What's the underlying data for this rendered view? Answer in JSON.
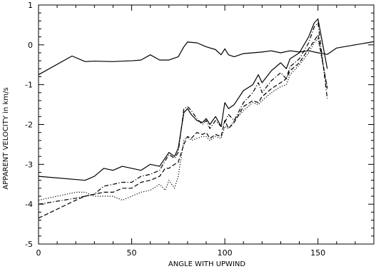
{
  "chart_data": {
    "type": "line",
    "title": "",
    "xlabel": "ANGLE WITH UPWIND",
    "ylabel": "APPARENT VELOCITY in km/s",
    "xlim": [
      0,
      180
    ],
    "ylim": [
      -5,
      1
    ],
    "xticks": [
      0,
      50,
      100,
      150
    ],
    "yticks": [
      -5,
      -4,
      -3,
      -2,
      -1,
      0,
      1
    ],
    "grid": false,
    "legend": "none",
    "series": [
      {
        "style": "solid",
        "x": [
          0,
          18,
          25,
          30,
          40,
          45,
          50,
          55,
          60,
          65,
          70,
          75,
          78,
          80,
          85,
          90,
          95,
          98,
          100,
          102,
          105,
          110,
          115,
          120,
          125,
          130,
          135,
          140,
          145,
          150,
          155,
          160,
          170,
          180
        ],
        "y": [
          -0.75,
          -0.28,
          -0.42,
          -0.41,
          -0.42,
          -0.41,
          -0.4,
          -0.38,
          -0.25,
          -0.38,
          -0.38,
          -0.3,
          -0.05,
          0.07,
          0.05,
          -0.05,
          -0.12,
          -0.25,
          -0.1,
          -0.25,
          -0.3,
          -0.22,
          -0.2,
          -0.18,
          -0.15,
          -0.2,
          -0.15,
          -0.18,
          -0.15,
          -0.2,
          -0.24,
          -0.08,
          0.0,
          0.08
        ]
      },
      {
        "style": "solid",
        "x": [
          0,
          25,
          30,
          35,
          40,
          45,
          50,
          55,
          60,
          65,
          70,
          73,
          75,
          78,
          80,
          82,
          85,
          88,
          90,
          92,
          95,
          98,
          100,
          102,
          105,
          110,
          115,
          118,
          120,
          125,
          130,
          133,
          135,
          140,
          145,
          148,
          150,
          155
        ],
        "y": [
          -3.3,
          -3.4,
          -3.3,
          -3.1,
          -3.15,
          -3.05,
          -3.1,
          -3.15,
          -3.0,
          -3.05,
          -2.7,
          -2.8,
          -2.6,
          -1.7,
          -1.6,
          -1.75,
          -1.9,
          -1.95,
          -1.85,
          -2.0,
          -1.8,
          -2.05,
          -1.45,
          -1.6,
          -1.5,
          -1.15,
          -1.0,
          -0.75,
          -0.95,
          -0.65,
          -0.45,
          -0.6,
          -0.35,
          -0.2,
          0.2,
          0.55,
          0.65,
          -0.6
        ]
      },
      {
        "style": "dash-dot",
        "x": [
          0,
          20,
          25,
          30,
          35,
          40,
          45,
          50,
          55,
          60,
          65,
          70,
          73,
          75,
          78,
          80,
          82,
          85,
          88,
          90,
          92,
          95,
          98,
          100,
          102,
          105,
          110,
          115,
          118,
          120,
          125,
          130,
          133,
          135,
          140,
          145,
          148,
          150,
          155
        ],
        "y": [
          -4.0,
          -3.85,
          -3.8,
          -3.75,
          -3.55,
          -3.5,
          -3.45,
          -3.45,
          -3.3,
          -3.25,
          -3.15,
          -2.75,
          -2.85,
          -2.7,
          -1.6,
          -1.55,
          -1.65,
          -1.85,
          -2.0,
          -1.9,
          -2.1,
          -1.9,
          -2.05,
          -1.95,
          -1.75,
          -1.9,
          -1.45,
          -1.2,
          -0.95,
          -1.2,
          -0.9,
          -0.7,
          -0.85,
          -0.55,
          -0.35,
          0.05,
          0.45,
          0.55,
          -1.35
        ]
      },
      {
        "style": "dashed",
        "x": [
          0,
          20,
          25,
          30,
          35,
          40,
          45,
          50,
          55,
          60,
          65,
          68,
          70,
          73,
          75,
          78,
          80,
          82,
          85,
          88,
          90,
          92,
          95,
          98,
          100,
          102,
          105,
          110,
          115,
          118,
          120,
          125,
          130,
          133,
          135,
          140,
          145,
          148,
          150,
          155
        ],
        "y": [
          -4.35,
          -3.9,
          -3.8,
          -3.75,
          -3.7,
          -3.7,
          -3.6,
          -3.6,
          -3.45,
          -3.4,
          -3.3,
          -3.1,
          -3.1,
          -3.0,
          -2.95,
          -2.5,
          -2.3,
          -2.35,
          -2.2,
          -2.25,
          -2.2,
          -2.35,
          -2.25,
          -2.3,
          -1.9,
          -2.1,
          -1.95,
          -1.55,
          -1.4,
          -1.45,
          -1.3,
          -1.1,
          -0.95,
          -0.85,
          -0.65,
          -0.45,
          -0.1,
          0.1,
          0.25,
          -1.1
        ]
      },
      {
        "style": "dotted",
        "x": [
          0,
          20,
          25,
          30,
          35,
          40,
          45,
          50,
          55,
          60,
          65,
          68,
          70,
          73,
          75,
          78,
          80,
          82,
          85,
          88,
          90,
          92,
          95,
          98,
          100,
          102,
          105,
          110,
          115,
          118,
          120,
          125,
          130,
          133,
          135,
          140,
          145,
          148,
          150,
          155
        ],
        "y": [
          -3.9,
          -3.7,
          -3.7,
          -3.8,
          -3.8,
          -3.8,
          -3.9,
          -3.8,
          -3.7,
          -3.65,
          -3.5,
          -3.65,
          -3.4,
          -3.6,
          -3.3,
          -2.4,
          -2.3,
          -2.4,
          -2.35,
          -2.3,
          -2.3,
          -2.4,
          -2.3,
          -2.35,
          -2.05,
          -2.1,
          -1.9,
          -1.65,
          -1.45,
          -1.5,
          -1.4,
          -1.2,
          -1.05,
          -1.0,
          -0.75,
          -0.5,
          -0.2,
          0.05,
          0.15,
          -1.05
        ]
      }
    ]
  },
  "colors": {
    "ink": "#000000",
    "background": "#ffffff"
  }
}
